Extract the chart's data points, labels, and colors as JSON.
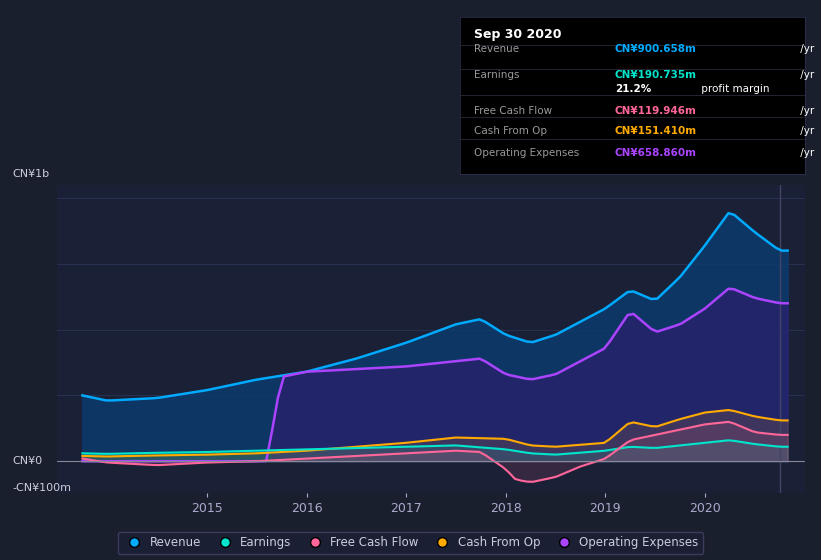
{
  "bg_color": "#1a1f2e",
  "plot_bg_color": "#1a2035",
  "grid_color": "#2a3050",
  "title_text": "Sep 30 2020",
  "tooltip_bg": "#000000",
  "y_label_top": "CN¥1b",
  "y_label_zero": "CN¥0",
  "y_label_neg": "-CN¥100m",
  "ylim": [
    -120,
    1050
  ],
  "xlim": [
    2013.5,
    2021.0
  ],
  "revenue_color": "#00aaff",
  "earnings_color": "#00e5cc",
  "fcf_color": "#ff6699",
  "cashfromop_color": "#ffaa00",
  "opex_color": "#aa44ff",
  "revenue_fill_color": "#0d3a6e",
  "opex_fill_color": "#2d1f6e",
  "legend_items": [
    "Revenue",
    "Earnings",
    "Free Cash Flow",
    "Cash From Op",
    "Operating Expenses"
  ],
  "legend_colors": [
    "#00aaff",
    "#00e5cc",
    "#ff6699",
    "#ffaa00",
    "#aa44ff"
  ],
  "tooltip": {
    "title": "Sep 30 2020",
    "rows": [
      {
        "label": "Revenue",
        "value": "CN¥900.658m /yr",
        "color": "#00aaff"
      },
      {
        "label": "Earnings",
        "value": "CN¥190.735m /yr",
        "color": "#00e5cc"
      },
      {
        "label": "",
        "value": "21.2% profit margin",
        "color": "#ffffff"
      },
      {
        "label": "Free Cash Flow",
        "value": "CN¥119.946m /yr",
        "color": "#ff6699"
      },
      {
        "label": "Cash From Op",
        "value": "CN¥151.410m /yr",
        "color": "#ffaa00"
      },
      {
        "label": "Operating Expenses",
        "value": "CN¥658.860m /yr",
        "color": "#aa44ff"
      }
    ]
  }
}
